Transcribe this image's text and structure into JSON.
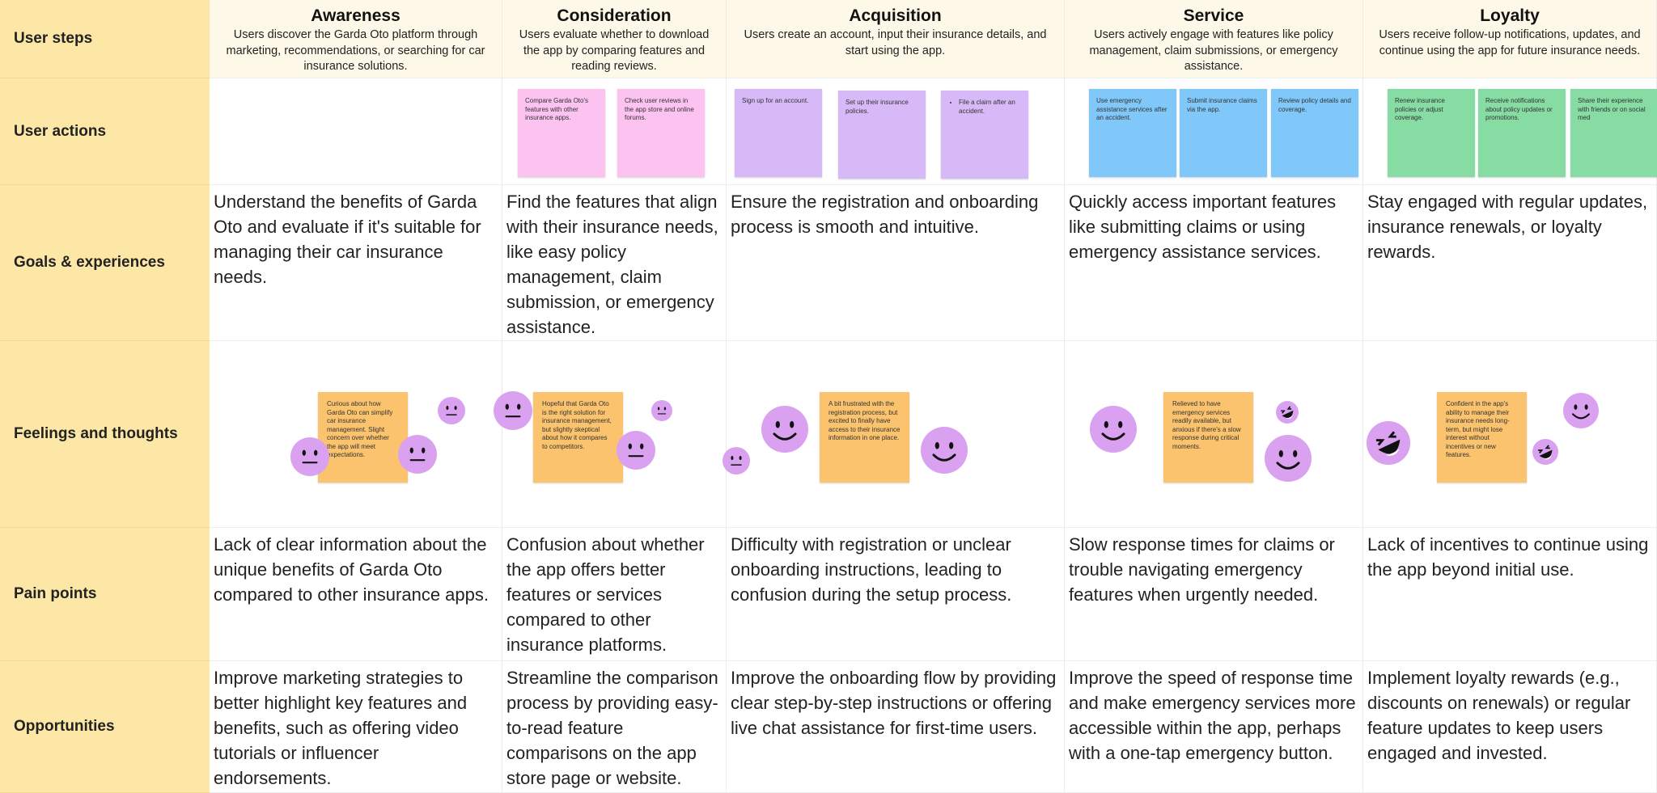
{
  "row_labels": [
    "User steps",
    "User actions",
    "Goals & experiences",
    "Feelings and thoughts",
    "Pain points",
    "Opportunities"
  ],
  "stages": [
    {
      "name": "Awareness",
      "description": "Users discover the Garda Oto platform through marketing, recommendations, or searching for car insurance solutions.",
      "actions": [],
      "goal": "Understand the benefits of Garda Oto and evaluate if it's suitable for managing their car insurance needs.",
      "feeling": "Curious about how Garda Oto can simplify car insurance management. Slight concern over whether the app will meet expectations.",
      "pain_point": "Lack of clear information about the unique benefits of Garda Oto compared to other insurance apps.",
      "opportunity": "Improve marketing strategies to better highlight key features and benefits, such as offering video tutorials or influencer endorsements."
    },
    {
      "name": "Consideration",
      "description": "Users evaluate whether to download the app by comparing features and reading reviews.",
      "actions": [
        "Compare Garda Oto's features with other insurance apps.",
        "Check user reviews in the app store and online forums."
      ],
      "goal": "Find the features that align with their insurance needs, like easy policy management, claim submission, or emergency assistance.",
      "feeling": "Hopeful that Garda Oto is the right solution for insurance management, but slightly skeptical about how it compares to competitors.",
      "pain_point": "Confusion about whether the app offers better features or services compared to other insurance platforms.",
      "opportunity": "Streamline the comparison process by providing easy-to-read feature comparisons on the app store page or website."
    },
    {
      "name": "Acquisition",
      "description": "Users create an account, input their insurance details, and start using the app.",
      "actions": [
        "Sign up for an account.",
        "Set up their insurance policies.",
        "File a claim after an accident."
      ],
      "goal": "Ensure the registration and onboarding process is smooth and intuitive.",
      "feeling": "A bit frustrated with the registration process, but excited to finally have access to their insurance information in one place.",
      "pain_point": "Difficulty with registration or unclear onboarding instructions, leading to confusion during the setup process.",
      "opportunity": "Improve the onboarding flow by providing clear step-by-step instructions or offering live chat assistance for first-time users."
    },
    {
      "name": "Service",
      "description": "Users actively engage with features like policy management, claim submissions, or emergency assistance.",
      "actions": [
        "Use emergency assistance services after an accident.",
        "Submit insurance claims via the app.",
        "Review policy details and coverage."
      ],
      "goal": "Quickly access important features like submitting claims or using emergency assistance services.",
      "feeling": "Relieved to have emergency services readily available, but anxious if there's a slow response during critical moments.",
      "pain_point": "Slow response times for claims or trouble navigating emergency features when urgently needed.",
      "opportunity": "Improve the speed of response time and make emergency services more accessible within the app, perhaps with a one-tap emergency button."
    },
    {
      "name": "Loyalty",
      "description": "Users receive follow-up notifications, updates, and continue using the app for future insurance needs.",
      "actions": [
        "Renew insurance policies or adjust coverage.",
        "Receive notifications about policy updates or promotions.",
        "Share their experience with friends or on social med"
      ],
      "goal": "Stay engaged with regular updates, insurance renewals, or loyalty rewards.",
      "feeling": "Confident in the app's ability to manage their insurance needs long-term, but might lose interest without incentives or new features.",
      "pain_point": "Lack of incentives to continue using the app beyond initial use.",
      "opportunity": "Implement loyalty rewards (e.g., discounts on renewals) or regular feature updates to keep users engaged and invested."
    }
  ]
}
